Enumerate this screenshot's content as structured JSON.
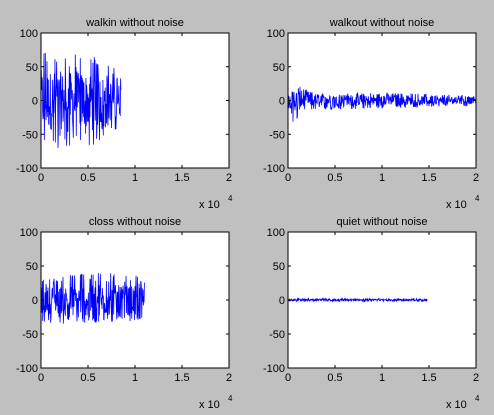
{
  "figure": {
    "background": "#c0c0c0",
    "axes_background": "#ffffff",
    "line_color": "#0000ff"
  },
  "chart_data": [
    {
      "type": "line",
      "title": "walkin without noise",
      "x_multiplier": {
        "base": "x 10",
        "exponent": "4"
      },
      "xlim": [
        0,
        20000
      ],
      "ylim": [
        -100,
        100
      ],
      "xticks": [
        0,
        5000,
        10000,
        15000,
        20000
      ],
      "xtick_labels": [
        "0",
        "0.5",
        "1",
        "1.5",
        "2"
      ],
      "yticks": [
        -100,
        -50,
        0,
        50,
        100
      ],
      "ytick_labels": [
        "-100",
        "-50",
        "0",
        "50",
        "100"
      ],
      "grid": false,
      "series": [
        {
          "x_range": [
            0,
            8500
          ],
          "envelope": [
            [
              0,
              75
            ],
            [
              3000,
              70
            ],
            [
              6000,
              70
            ],
            [
              8500,
              40
            ]
          ],
          "min_envelope": [
            [
              0,
              -75
            ],
            [
              3000,
              -70
            ],
            [
              6000,
              -65
            ],
            [
              8500,
              -40
            ]
          ],
          "color": "#0000ff"
        }
      ]
    },
    {
      "type": "line",
      "title": "walkout without noise",
      "x_multiplier": {
        "base": "x 10",
        "exponent": "4"
      },
      "xlim": [
        0,
        20000
      ],
      "ylim": [
        -100,
        100
      ],
      "xticks": [
        0,
        5000,
        10000,
        15000,
        20000
      ],
      "xtick_labels": [
        "0",
        "0.5",
        "1",
        "1.5",
        "2"
      ],
      "yticks": [
        -100,
        -50,
        0,
        50,
        100
      ],
      "ytick_labels": [
        "-100",
        "-50",
        "0",
        "50",
        "100"
      ],
      "grid": false,
      "series": [
        {
          "x_range": [
            0,
            20000
          ],
          "envelope": [
            [
              0,
              10
            ],
            [
              1000,
              22
            ],
            [
              3000,
              10
            ],
            [
              10000,
              12
            ],
            [
              20000,
              8
            ]
          ],
          "min_envelope": [
            [
              0,
              -10
            ],
            [
              500,
              -35
            ],
            [
              2000,
              -15
            ],
            [
              10000,
              -12
            ],
            [
              20000,
              -8
            ]
          ],
          "color": "#0000ff"
        }
      ]
    },
    {
      "type": "line",
      "title": "closs without noise",
      "x_multiplier": {
        "base": "x 10",
        "exponent": "4"
      },
      "xlim": [
        0,
        20000
      ],
      "ylim": [
        -100,
        100
      ],
      "xticks": [
        0,
        5000,
        10000,
        15000,
        20000
      ],
      "xtick_labels": [
        "0",
        "0.5",
        "1",
        "1.5",
        "2"
      ],
      "yticks": [
        -100,
        -50,
        0,
        50,
        100
      ],
      "ytick_labels": [
        "-100",
        "-50",
        "0",
        "50",
        "100"
      ],
      "grid": false,
      "series": [
        {
          "x_range": [
            0,
            11000
          ],
          "envelope": [
            [
              0,
              30
            ],
            [
              6000,
              45
            ],
            [
              11000,
              35
            ]
          ],
          "min_envelope": [
            [
              0,
              -35
            ],
            [
              6000,
              -35
            ],
            [
              11000,
              -30
            ]
          ],
          "color": "#0000ff"
        }
      ]
    },
    {
      "type": "line",
      "title": "quiet without noise",
      "x_multiplier": {
        "base": "x 10",
        "exponent": "4"
      },
      "xlim": [
        0,
        20000
      ],
      "ylim": [
        -100,
        100
      ],
      "xticks": [
        0,
        5000,
        10000,
        15000,
        20000
      ],
      "xtick_labels": [
        "0",
        "0.5",
        "1",
        "1.5",
        "2"
      ],
      "yticks": [
        -100,
        -50,
        0,
        50,
        100
      ],
      "ytick_labels": [
        "-100",
        "-50",
        "0",
        "50",
        "100"
      ],
      "grid": false,
      "series": [
        {
          "x_range": [
            0,
            14800
          ],
          "envelope": [
            [
              0,
              2
            ],
            [
              14800,
              2
            ]
          ],
          "min_envelope": [
            [
              0,
              -2
            ],
            [
              14800,
              -2
            ]
          ],
          "color": "#0000ff"
        }
      ]
    }
  ]
}
